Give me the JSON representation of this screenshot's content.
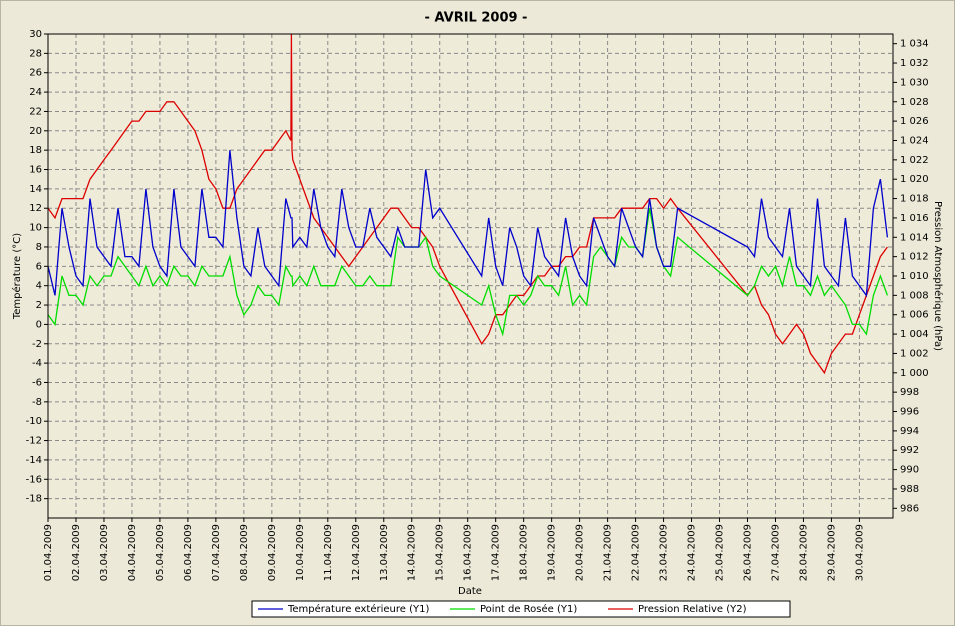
{
  "chart_data": {
    "type": "line",
    "title": "-  AVRIL  2009  -",
    "x_label": "Date",
    "y_label": "Température (°C)",
    "y2_label": "Pression Atmosphérique (hPa)",
    "x": [
      0,
      0.25,
      0.5,
      0.75,
      1,
      1.25,
      1.5,
      1.75,
      2,
      2.25,
      2.5,
      2.75,
      3,
      3.25,
      3.5,
      3.75,
      4,
      4.25,
      4.5,
      4.75,
      5,
      5.25,
      5.5,
      5.75,
      6,
      6.25,
      6.5,
      6.75,
      7,
      7.25,
      7.5,
      7.75,
      8,
      8.25,
      8.5,
      8.68,
      8.7,
      8.72,
      8.75,
      9,
      9.25,
      9.5,
      9.75,
      10,
      10.25,
      10.5,
      10.75,
      11,
      11.25,
      11.5,
      11.75,
      12,
      12.25,
      12.5,
      12.75,
      13,
      13.25,
      13.5,
      13.75,
      14,
      15.5,
      15.75,
      16,
      16.25,
      16.5,
      16.75,
      17,
      17.25,
      17.5,
      17.75,
      18,
      18.25,
      18.5,
      18.75,
      19,
      19.25,
      19.5,
      19.75,
      20,
      20.25,
      20.5,
      20.75,
      21,
      21.25,
      21.5,
      21.75,
      22,
      22.25,
      22.5,
      25,
      25.25,
      25.5,
      25.75,
      26,
      26.25,
      26.5,
      26.75,
      27,
      27.25,
      27.5,
      27.75,
      28,
      28.25,
      28.5,
      28.75,
      29,
      29.25,
      29.5,
      29.75,
      30
    ],
    "series": [
      {
        "name": "Température extérieure (Y1)",
        "color": "#0000cc",
        "values": [
          6,
          3,
          12,
          8,
          5,
          4,
          13,
          8,
          7,
          6,
          12,
          7,
          7,
          6,
          14,
          8,
          6,
          5,
          14,
          8,
          7,
          6,
          14,
          9,
          9,
          8,
          18,
          11,
          6,
          5,
          10,
          6,
          5,
          4,
          13,
          11,
          11,
          11,
          8,
          9,
          8,
          14,
          10,
          8,
          7,
          14,
          10,
          8,
          8,
          12,
          9,
          8,
          7,
          10,
          8,
          8,
          8,
          16,
          11,
          12,
          5,
          11,
          6,
          4,
          10,
          8,
          5,
          4,
          10,
          7,
          6,
          5,
          11,
          7,
          5,
          4,
          11,
          9,
          7,
          6,
          12,
          10,
          8,
          7,
          13,
          8,
          6,
          6,
          12,
          8,
          7,
          13,
          9,
          8,
          7,
          12,
          6,
          5,
          4,
          13,
          6,
          5,
          4,
          11,
          5,
          4,
          3,
          12,
          15,
          9
        ]
      },
      {
        "name": "Point de Rosée (Y1)",
        "color": "#00dd00",
        "values": [
          1,
          0,
          5,
          3,
          3,
          2,
          5,
          4,
          5,
          5,
          7,
          6,
          5,
          4,
          6,
          4,
          5,
          4,
          6,
          5,
          5,
          4,
          6,
          5,
          5,
          5,
          7,
          3,
          1,
          2,
          4,
          3,
          3,
          2,
          6,
          5,
          5,
          5,
          4,
          5,
          4,
          6,
          4,
          4,
          4,
          6,
          5,
          4,
          4,
          5,
          4,
          4,
          4,
          9,
          8,
          8,
          8,
          9,
          6,
          5,
          2,
          4,
          1,
          -1,
          3,
          3,
          2,
          3,
          5,
          4,
          4,
          3,
          6,
          2,
          3,
          2,
          7,
          8,
          7,
          6,
          9,
          8,
          8,
          7,
          12,
          8,
          6,
          5,
          9,
          3,
          4,
          6,
          5,
          6,
          4,
          7,
          4,
          4,
          3,
          5,
          3,
          4,
          3,
          2,
          0,
          0,
          -1,
          3,
          5,
          3
        ]
      },
      {
        "name": "Pression Relative (Y2)",
        "color": "#dd0000",
        "axis": "y2",
        "values": [
          1017,
          1016,
          1018,
          1018,
          1018,
          1018,
          1020,
          1021,
          1022,
          1023,
          1024,
          1025,
          1026,
          1026,
          1027,
          1027,
          1027,
          1028,
          1028,
          1027,
          1026,
          1025,
          1023,
          1020,
          1019,
          1017,
          1017,
          1019,
          1020,
          1021,
          1022,
          1023,
          1023,
          1024,
          1025,
          1024,
          1035,
          1023,
          1022,
          1020,
          1018,
          1016,
          1015,
          1014,
          1013,
          1012,
          1011,
          1012,
          1013,
          1014,
          1015,
          1016,
          1017,
          1017,
          1016,
          1015,
          1015,
          1014,
          1013,
          1011,
          1003,
          1004,
          1006,
          1006,
          1007,
          1008,
          1008,
          1009,
          1010,
          1010,
          1011,
          1011,
          1012,
          1012,
          1013,
          1013,
          1016,
          1016,
          1016,
          1016,
          1017,
          1017,
          1017,
          1017,
          1018,
          1018,
          1017,
          1018,
          1017,
          1008,
          1009,
          1007,
          1006,
          1004,
          1003,
          1004,
          1005,
          1004,
          1002,
          1001,
          1000,
          1002,
          1003,
          1004,
          1004,
          1006,
          1008,
          1010,
          1012,
          1013
        ]
      }
    ],
    "xlim": [
      0,
      30.2
    ],
    "xticks": [
      {
        "value": 0,
        "label": "01.04.2009"
      },
      {
        "value": 1,
        "label": "02.04.2009"
      },
      {
        "value": 2,
        "label": "03.04.2009"
      },
      {
        "value": 3,
        "label": "04.04.2009"
      },
      {
        "value": 4,
        "label": "05.04.2009"
      },
      {
        "value": 5,
        "label": "06.04.2009"
      },
      {
        "value": 6,
        "label": "07.04.2009"
      },
      {
        "value": 7,
        "label": "08.04.2009"
      },
      {
        "value": 8,
        "label": "09.04.2009"
      },
      {
        "value": 9,
        "label": "10.04.2009"
      },
      {
        "value": 10,
        "label": "11.04.2009"
      },
      {
        "value": 11,
        "label": "12.04.2009"
      },
      {
        "value": 12,
        "label": "13.04.2009"
      },
      {
        "value": 13,
        "label": "14.04.2009"
      },
      {
        "value": 14,
        "label": "15.04.2009"
      },
      {
        "value": 15,
        "label": "16.04.2009"
      },
      {
        "value": 16,
        "label": "17.04.2009"
      },
      {
        "value": 17,
        "label": "18.04.2009"
      },
      {
        "value": 18,
        "label": "19.04.2009"
      },
      {
        "value": 19,
        "label": "20.04.2009"
      },
      {
        "value": 20,
        "label": "21.04.2009"
      },
      {
        "value": 21,
        "label": "22.04.2009"
      },
      {
        "value": 22,
        "label": "23.04.2009"
      },
      {
        "value": 23,
        "label": "24.04.2009"
      },
      {
        "value": 24,
        "label": "25.04.2009"
      },
      {
        "value": 25,
        "label": "26.04.2009"
      },
      {
        "value": 26,
        "label": "27.04.2009"
      },
      {
        "value": 27,
        "label": "28.04.2009"
      },
      {
        "value": 28,
        "label": "29.04.2009"
      },
      {
        "value": 29,
        "label": "30.04.2009"
      }
    ],
    "ylim": [
      -20,
      30
    ],
    "yticks": [
      -18,
      -16,
      -14,
      -12,
      -10,
      -8,
      -6,
      -4,
      -2,
      0,
      2,
      4,
      6,
      8,
      10,
      12,
      14,
      16,
      18,
      20,
      22,
      24,
      26,
      28,
      30
    ],
    "y2lim": [
      985,
      1035
    ],
    "y2ticks": [
      986,
      988,
      990,
      992,
      994,
      996,
      998,
      {
        "value": 1000,
        "label": "1 000"
      },
      {
        "value": 1002,
        "label": "1 002"
      },
      {
        "value": 1004,
        "label": "1 004"
      },
      {
        "value": 1006,
        "label": "1 006"
      },
      {
        "value": 1008,
        "label": "1 008"
      },
      {
        "value": 1010,
        "label": "1 010"
      },
      {
        "value": 1012,
        "label": "1 012"
      },
      {
        "value": 1014,
        "label": "1 014"
      },
      {
        "value": 1016,
        "label": "1 016"
      },
      {
        "value": 1018,
        "label": "1 018"
      },
      {
        "value": 1020,
        "label": "1 020"
      },
      {
        "value": 1022,
        "label": "1 022"
      },
      {
        "value": 1024,
        "label": "1 024"
      },
      {
        "value": 1026,
        "label": "1 026"
      },
      {
        "value": 1028,
        "label": "1 028"
      },
      {
        "value": 1030,
        "label": "1 030"
      },
      {
        "value": 1032,
        "label": "1 032"
      },
      {
        "value": 1034,
        "label": "1 034"
      }
    ],
    "grid": true,
    "legend": "bottom"
  }
}
